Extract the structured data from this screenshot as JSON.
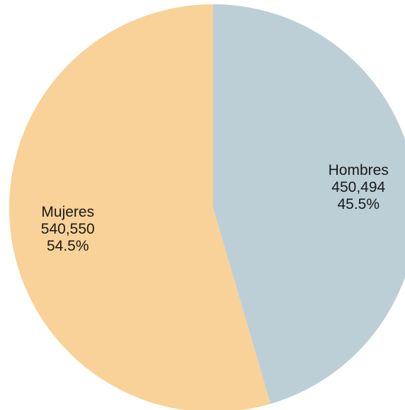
{
  "chart_data": {
    "type": "pie",
    "title": "",
    "start": "top",
    "direction": "clockwise",
    "slices": [
      {
        "name": "Hombres",
        "value": 450494,
        "percent_label": "45.5%",
        "value_label": "450,494",
        "color": "#bccfd7"
      },
      {
        "name": "Mujeres",
        "value": 540550,
        "percent_label": "54.5%",
        "value_label": "540,550",
        "color": "#f8d298"
      }
    ]
  }
}
